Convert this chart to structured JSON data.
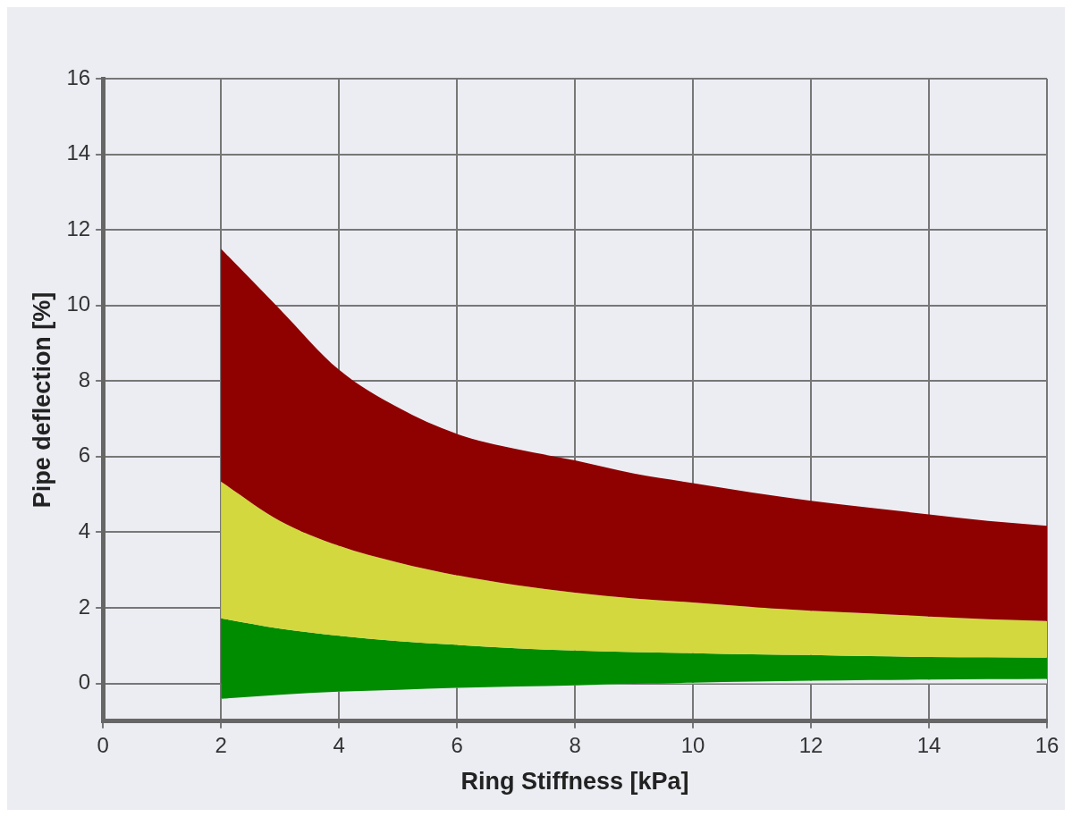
{
  "chart_data": {
    "type": "area",
    "stacked": true,
    "xlabel": "Ring Stiffness [kPa]",
    "ylabel": "Pipe deflection [%]",
    "x": [
      2,
      3,
      4,
      5,
      6,
      7,
      8,
      9,
      10,
      11,
      12,
      13,
      14,
      15,
      16
    ],
    "series": [
      {
        "color": "#ecedf3",
        "values": [
          -0.41,
          -0.3,
          -0.22,
          -0.17,
          -0.12,
          -0.08,
          -0.05,
          -0.01,
          0.02,
          0.05,
          0.07,
          0.09,
          0.1,
          0.11,
          0.12
        ]
      },
      {
        "color": "#008c00",
        "values": [
          2.13,
          1.75,
          1.48,
          1.29,
          1.14,
          1.01,
          0.92,
          0.84,
          0.78,
          0.72,
          0.68,
          0.63,
          0.6,
          0.58,
          0.56
        ]
      },
      {
        "color": "#d3d83f",
        "values": [
          3.62,
          2.85,
          2.38,
          2.08,
          1.84,
          1.67,
          1.53,
          1.42,
          1.34,
          1.25,
          1.17,
          1.13,
          1.07,
          1.01,
          0.97
        ]
      },
      {
        "color": "#8f0000",
        "values": [
          6.16,
          5.6,
          4.66,
          4.1,
          3.74,
          3.6,
          3.5,
          3.3,
          3.16,
          3.03,
          2.91,
          2.8,
          2.7,
          2.6,
          2.52
        ]
      }
    ],
    "xlim": [
      0,
      16
    ],
    "xticks": [
      0,
      2,
      4,
      6,
      8,
      10,
      12,
      14,
      16
    ],
    "ylim": [
      -1,
      16
    ],
    "yticks": [
      0,
      2,
      4,
      6,
      8,
      10,
      12,
      14,
      16
    ],
    "grid": true,
    "legend": false
  }
}
